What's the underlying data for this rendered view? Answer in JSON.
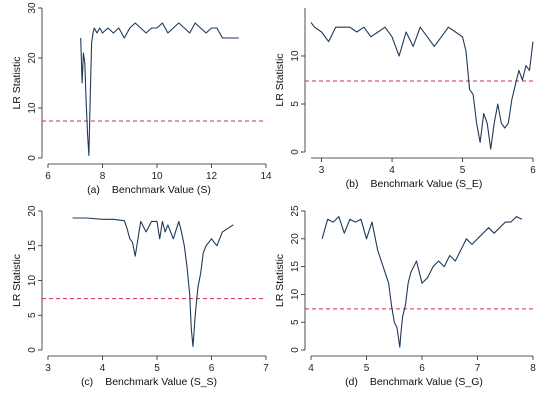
{
  "colors": {
    "series": "#1f3a5a",
    "threshold": "#d6285a",
    "axis": "#222222"
  },
  "chart_data": [
    {
      "type": "line",
      "panel": "(a)",
      "xlabel": "Benchmark Value (S)",
      "ylabel": "LR Statistic",
      "xlim": [
        6,
        14
      ],
      "ylim": [
        0,
        30
      ],
      "xticks": [
        6,
        8,
        10,
        12,
        14
      ],
      "yticks": [
        0,
        10,
        20,
        30
      ],
      "threshold": 7.4,
      "series": [
        {
          "x": [
            7.2,
            7.25,
            7.3,
            7.35,
            7.4,
            7.45,
            7.5,
            7.55,
            7.6,
            7.65,
            7.7,
            7.8,
            7.9,
            8.0,
            8.2,
            8.4,
            8.6,
            8.8,
            9.0,
            9.2,
            9.4,
            9.6,
            9.8,
            10.0,
            10.2,
            10.4,
            10.6,
            10.8,
            11.0,
            11.2,
            11.4,
            11.6,
            11.8,
            12.0,
            12.2,
            12.4,
            12.6,
            12.8,
            13.0
          ],
          "y": [
            24,
            15,
            21,
            19,
            11,
            5,
            0.5,
            12,
            23,
            25,
            26,
            25,
            26,
            25,
            26,
            25,
            26,
            24,
            26,
            27,
            26,
            25,
            26,
            26,
            27,
            25,
            26,
            27,
            26,
            25,
            27,
            26,
            25,
            26,
            26,
            24,
            24,
            24,
            24
          ]
        }
      ]
    },
    {
      "type": "line",
      "panel": "(b)",
      "xlabel": "Benchmark Value (S_E)",
      "ylabel": "LR Statistic",
      "xlim": [
        2.85,
        6.0
      ],
      "ylim": [
        0,
        15
      ],
      "xticks": [
        3,
        4,
        5,
        6
      ],
      "yticks": [
        0,
        5,
        10
      ],
      "threshold": 7.4,
      "series": [
        {
          "x": [
            2.85,
            2.9,
            3.0,
            3.1,
            3.2,
            3.3,
            3.4,
            3.5,
            3.6,
            3.7,
            3.8,
            3.9,
            4.0,
            4.1,
            4.2,
            4.3,
            4.4,
            4.5,
            4.6,
            4.7,
            4.8,
            4.9,
            5.0,
            5.05,
            5.1,
            5.15,
            5.2,
            5.25,
            5.3,
            5.35,
            5.4,
            5.45,
            5.5,
            5.55,
            5.6,
            5.65,
            5.7,
            5.75,
            5.8,
            5.85,
            5.9,
            5.95,
            6.0
          ],
          "y": [
            13.5,
            13,
            12.5,
            11.5,
            13,
            13,
            13,
            12.5,
            13,
            12,
            12.5,
            13,
            12,
            10,
            12.5,
            11,
            13,
            12,
            11,
            12,
            13,
            12.5,
            12,
            10.5,
            6.5,
            6,
            3,
            1,
            4,
            3,
            0.3,
            3,
            5,
            3,
            2.5,
            3,
            5.5,
            7,
            8.5,
            7.5,
            9,
            8.5,
            11.5
          ]
        }
      ]
    },
    {
      "type": "line",
      "panel": "(c)",
      "xlabel": "Benchmark Value (S_S)",
      "ylabel": "LR Statistic",
      "xlim": [
        3,
        7
      ],
      "ylim": [
        0,
        20
      ],
      "xticks": [
        3,
        4,
        5,
        6,
        7
      ],
      "yticks": [
        0,
        5,
        10,
        15,
        20
      ],
      "threshold": 7.4,
      "series": [
        {
          "x": [
            3.45,
            3.7,
            4.0,
            4.2,
            4.4,
            4.45,
            4.5,
            4.55,
            4.6,
            4.7,
            4.8,
            4.9,
            5.0,
            5.05,
            5.1,
            5.15,
            5.2,
            5.3,
            5.4,
            5.45,
            5.5,
            5.55,
            5.6,
            5.63,
            5.66,
            5.7,
            5.75,
            5.8,
            5.85,
            5.9,
            6.0,
            6.1,
            6.2,
            6.3,
            6.4
          ],
          "y": [
            19,
            19,
            18.8,
            18.8,
            18.6,
            17.5,
            16,
            15.5,
            13.5,
            18.5,
            17,
            18.5,
            18.5,
            16,
            18.5,
            17,
            18,
            16,
            18.5,
            17,
            15,
            12,
            8,
            3,
            0.5,
            5,
            9,
            11,
            14,
            15,
            16,
            15,
            17,
            17.5,
            18
          ]
        }
      ]
    },
    {
      "type": "line",
      "panel": "(d)",
      "xlabel": "Benchmark Value (S_G)",
      "ylabel": "LR Statistic",
      "xlim": [
        4,
        8
      ],
      "ylim": [
        0,
        25
      ],
      "xticks": [
        4,
        5,
        6,
        7,
        8
      ],
      "yticks": [
        0,
        5,
        10,
        15,
        20,
        25
      ],
      "threshold": 7.4,
      "series": [
        {
          "x": [
            4.2,
            4.3,
            4.4,
            4.5,
            4.6,
            4.7,
            4.8,
            4.9,
            5.0,
            5.1,
            5.2,
            5.3,
            5.4,
            5.45,
            5.5,
            5.55,
            5.6,
            5.62,
            5.65,
            5.7,
            5.75,
            5.8,
            5.9,
            6.0,
            6.1,
            6.2,
            6.3,
            6.4,
            6.5,
            6.6,
            6.7,
            6.8,
            6.9,
            7.0,
            7.1,
            7.2,
            7.3,
            7.4,
            7.5,
            7.6,
            7.7,
            7.8
          ],
          "y": [
            20,
            23.5,
            23,
            24,
            21,
            23.5,
            23,
            23.5,
            20,
            23,
            18,
            15,
            12,
            8,
            5,
            4,
            0.5,
            3,
            6,
            8,
            12,
            14,
            16,
            12,
            13,
            15,
            16,
            15,
            17,
            16,
            18,
            20,
            19,
            20,
            21,
            22,
            21,
            22,
            23,
            23,
            24,
            23.5
          ]
        }
      ]
    }
  ],
  "panels_text": [
    {
      "xlabel": "Benchmark Value (S)",
      "ylabel": "LR Statistic",
      "panel": "(a)",
      "tick_x": [
        "6",
        "8",
        "10",
        "12",
        "14"
      ],
      "tick_y": [
        "0",
        "10",
        "20",
        "30"
      ]
    },
    {
      "xlabel": "Benchmark Value (S_E)",
      "ylabel": "LR Statistic",
      "panel": "(b)",
      "tick_x": [
        "3",
        "4",
        "5",
        "6"
      ],
      "tick_y": [
        "0",
        "5",
        "10"
      ]
    },
    {
      "xlabel": "Benchmark Value (S_S)",
      "ylabel": "LR Statistic",
      "panel": "(c)",
      "tick_x": [
        "3",
        "4",
        "5",
        "6",
        "7"
      ],
      "tick_y": [
        "0",
        "5",
        "10",
        "15",
        "20"
      ]
    },
    {
      "xlabel": "Benchmark Value (S_G)",
      "ylabel": "LR Statistic",
      "panel": "(d)",
      "tick_x": [
        "4",
        "5",
        "6",
        "7",
        "8"
      ],
      "tick_y": [
        "0",
        "5",
        "10",
        "15",
        "20",
        "25"
      ]
    }
  ]
}
